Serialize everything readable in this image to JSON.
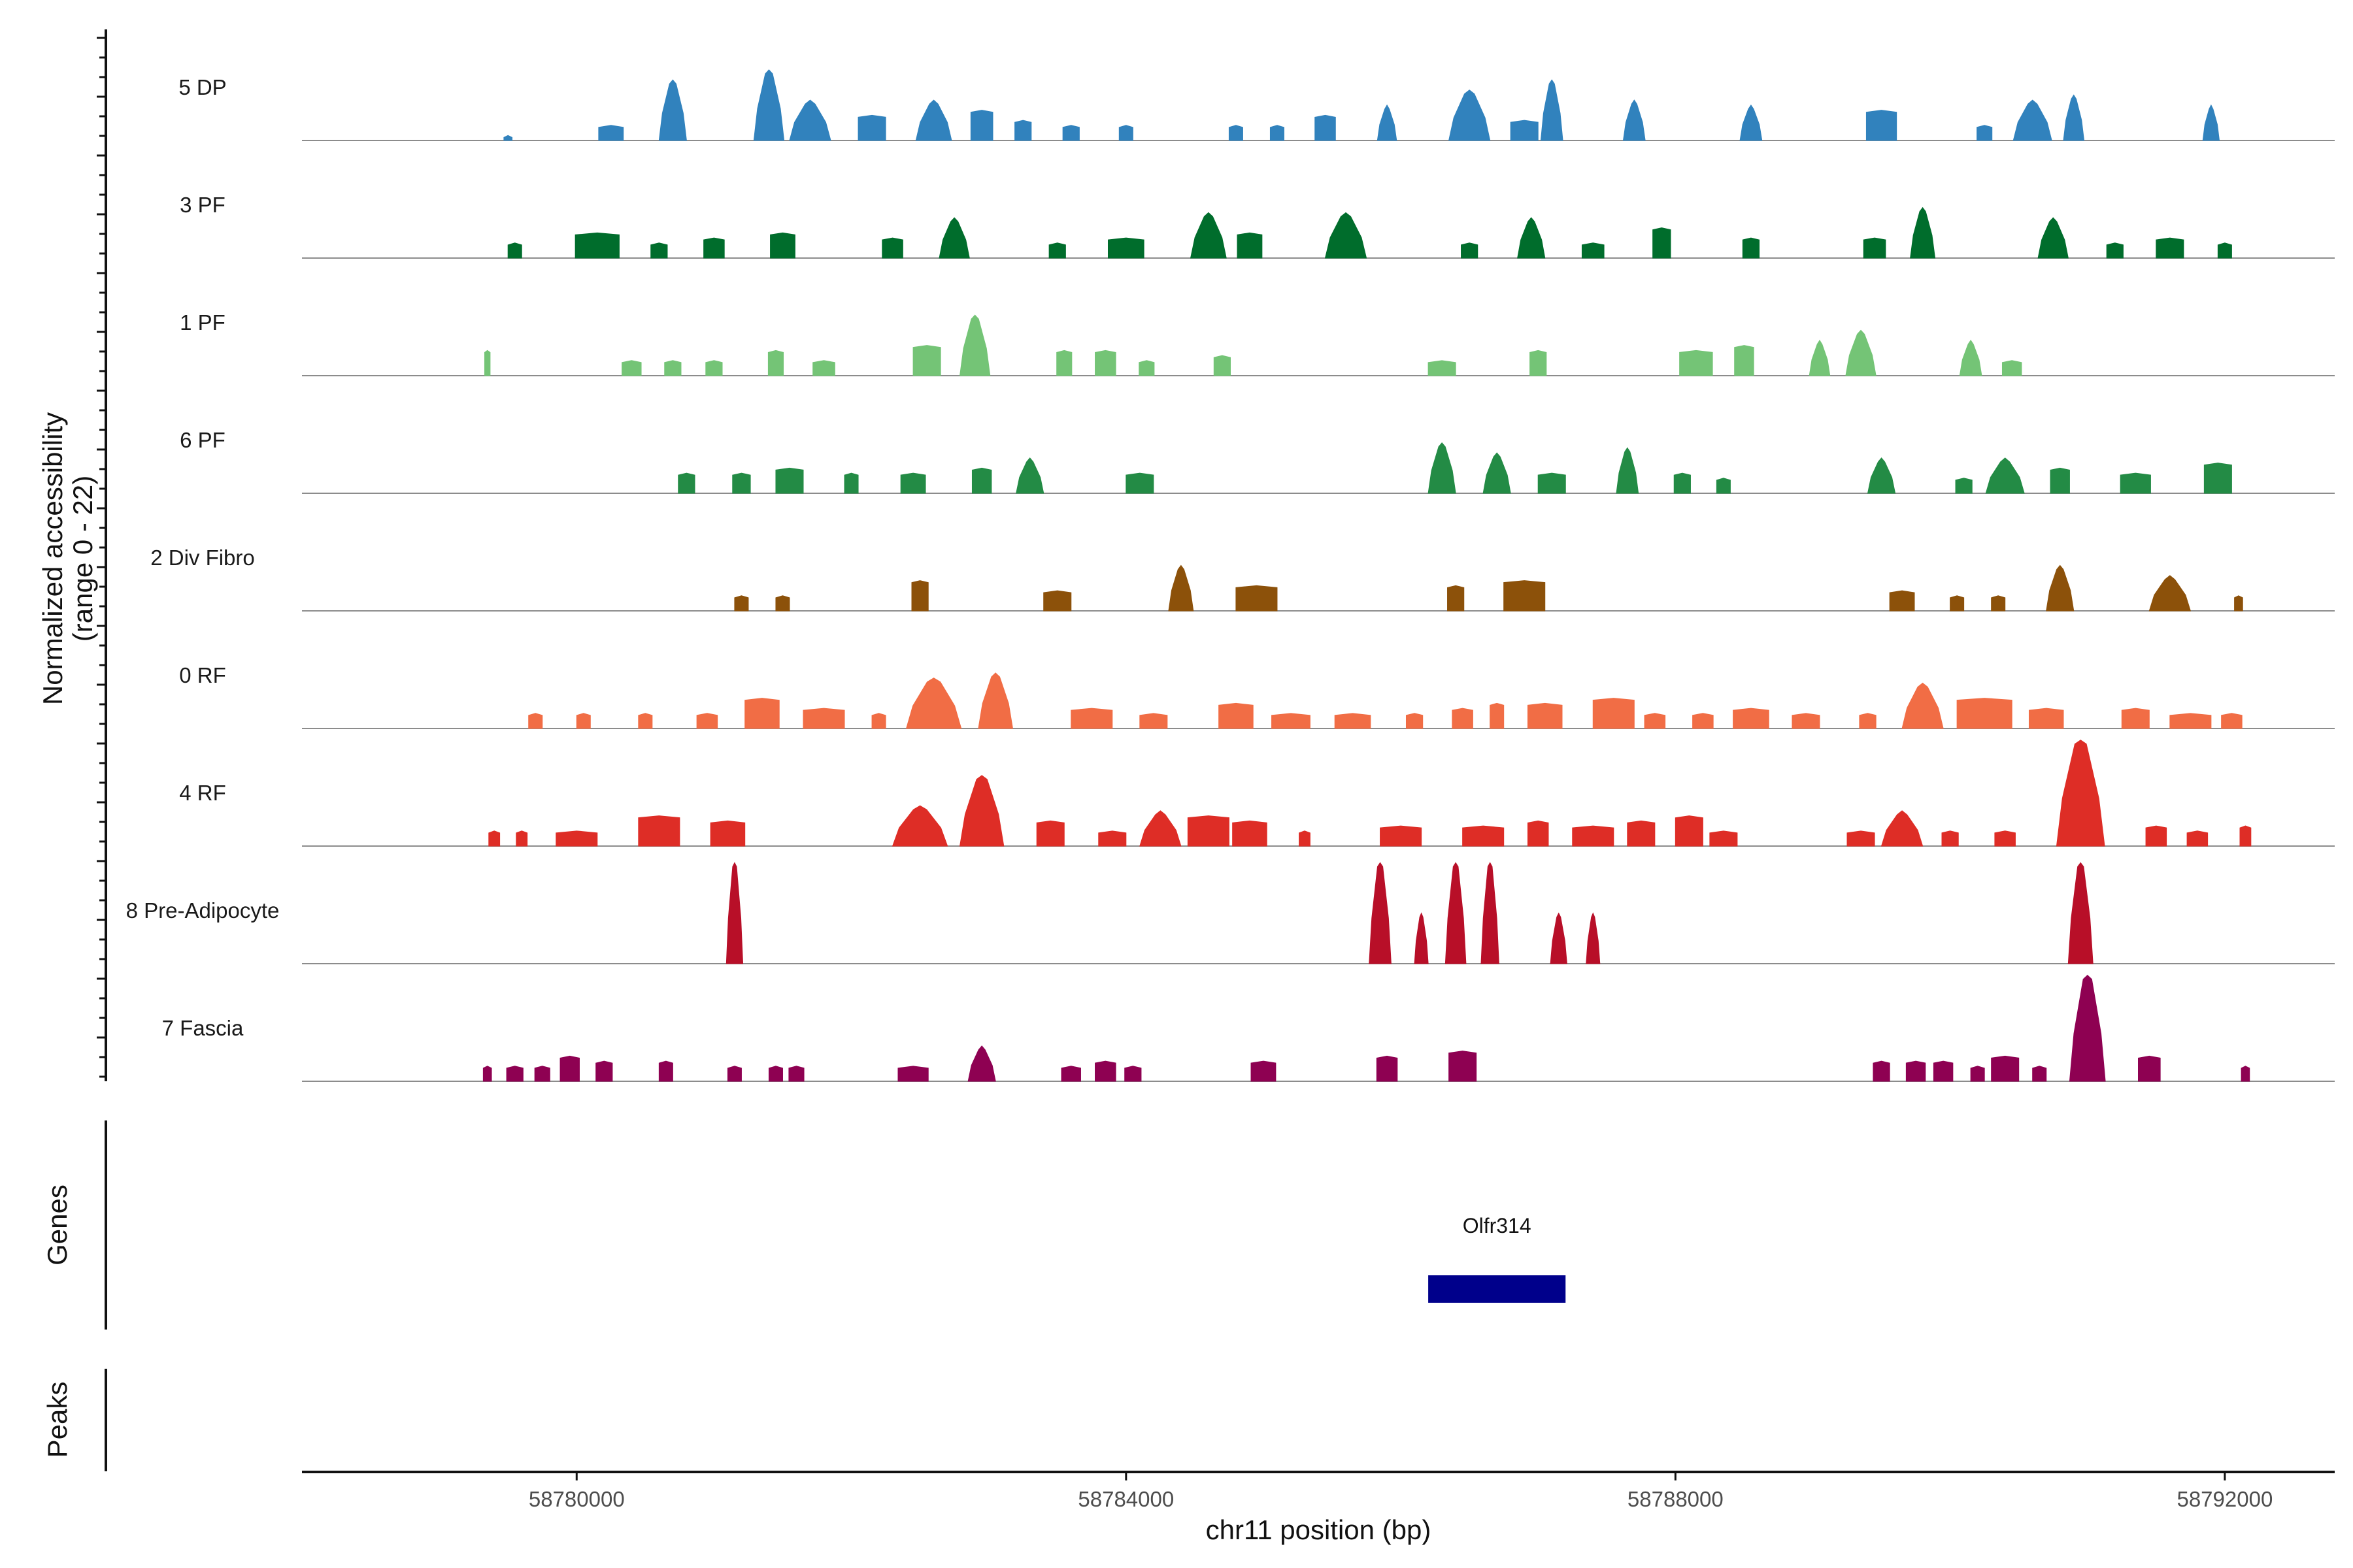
{
  "chart_data": {
    "type": "area",
    "title": "",
    "xlabel": "chr11 position (bp)",
    "ylabel": "Normalized accessibility\n(range 0 - 22)",
    "ylim": [
      0,
      22
    ],
    "xlim": [
      58778000,
      58792800
    ],
    "x_ticks": [
      58780000,
      58784000,
      58788000,
      58792000
    ],
    "x_tick_labels": [
      "58780000",
      "58784000",
      "58788000",
      "58792000"
    ],
    "genes_track_label": "Genes",
    "peaks_track_label": "Peaks",
    "genes": [
      {
        "name": "Olfr314",
        "start": 58786200,
        "end": 58787200,
        "color": "#00008B"
      }
    ],
    "series": [
      {
        "name": "5 DP",
        "color": "#3182BD",
        "peaks": [
          [
            58779500,
            60,
            1
          ],
          [
            58780250,
            180,
            3
          ],
          [
            58780700,
            200,
            12
          ],
          [
            58781400,
            220,
            14
          ],
          [
            58781700,
            300,
            8
          ],
          [
            58782150,
            200,
            5
          ],
          [
            58782600,
            260,
            8
          ],
          [
            58782950,
            160,
            6
          ],
          [
            58783250,
            120,
            4
          ],
          [
            58783600,
            120,
            3
          ],
          [
            58784000,
            100,
            3
          ],
          [
            58784800,
            100,
            3
          ],
          [
            58785100,
            100,
            3
          ],
          [
            58785450,
            150,
            5
          ],
          [
            58785900,
            140,
            7
          ],
          [
            58786500,
            300,
            10
          ],
          [
            58786900,
            200,
            4
          ],
          [
            58787100,
            160,
            12
          ],
          [
            58787700,
            160,
            8
          ],
          [
            58788550,
            160,
            7
          ],
          [
            58789500,
            220,
            6
          ],
          [
            58790250,
            110,
            3
          ],
          [
            58790600,
            280,
            8
          ],
          [
            58790900,
            150,
            9
          ],
          [
            58791900,
            120,
            7
          ]
        ]
      },
      {
        "name": "3 PF",
        "color": "#006D2C",
        "peaks": [
          [
            58779550,
            100,
            3
          ],
          [
            58780150,
            320,
            5
          ],
          [
            58780600,
            120,
            3
          ],
          [
            58781000,
            150,
            4
          ],
          [
            58781500,
            180,
            5
          ],
          [
            58782300,
            150,
            4
          ],
          [
            58782750,
            220,
            8
          ],
          [
            58783500,
            120,
            3
          ],
          [
            58784000,
            260,
            4
          ],
          [
            58784600,
            260,
            9
          ],
          [
            58784900,
            180,
            5
          ],
          [
            58785600,
            300,
            9
          ],
          [
            58786500,
            120,
            3
          ],
          [
            58786950,
            200,
            8
          ],
          [
            58787400,
            160,
            3
          ],
          [
            58787900,
            130,
            6
          ],
          [
            58788550,
            120,
            4
          ],
          [
            58789450,
            160,
            4
          ],
          [
            58789800,
            180,
            10
          ],
          [
            58790750,
            220,
            8
          ],
          [
            58791200,
            120,
            3
          ],
          [
            58791600,
            200,
            4
          ],
          [
            58792000,
            100,
            3
          ]
        ]
      },
      {
        "name": "1 PF",
        "color": "#74C476",
        "peaks": [
          [
            58779350,
            40,
            5
          ],
          [
            58780400,
            140,
            3
          ],
          [
            58780700,
            120,
            3
          ],
          [
            58781000,
            120,
            3
          ],
          [
            58781450,
            110,
            5
          ],
          [
            58781800,
            160,
            3
          ],
          [
            58782550,
            200,
            6
          ],
          [
            58782900,
            220,
            12
          ],
          [
            58783550,
            110,
            5
          ],
          [
            58783850,
            150,
            5
          ],
          [
            58784150,
            110,
            3
          ],
          [
            58784700,
            120,
            4
          ],
          [
            58786300,
            200,
            3
          ],
          [
            58787000,
            120,
            5
          ],
          [
            58788150,
            240,
            5
          ],
          [
            58788500,
            140,
            6
          ],
          [
            58789050,
            150,
            7
          ],
          [
            58789350,
            220,
            9
          ],
          [
            58790150,
            160,
            7
          ],
          [
            58790450,
            140,
            3
          ]
        ]
      },
      {
        "name": "6 PF",
        "color": "#238B45",
        "peaks": [
          [
            58780800,
            120,
            4
          ],
          [
            58781200,
            130,
            4
          ],
          [
            58781550,
            200,
            5
          ],
          [
            58782000,
            100,
            4
          ],
          [
            58782450,
            180,
            4
          ],
          [
            58782950,
            140,
            5
          ],
          [
            58783300,
            200,
            7
          ],
          [
            58784100,
            200,
            4
          ],
          [
            58786300,
            200,
            10
          ],
          [
            58786700,
            200,
            8
          ],
          [
            58787100,
            200,
            4
          ],
          [
            58787650,
            160,
            9
          ],
          [
            58788050,
            120,
            4
          ],
          [
            58788350,
            100,
            3
          ],
          [
            58789500,
            200,
            7
          ],
          [
            58790100,
            120,
            3
          ],
          [
            58790400,
            280,
            7
          ],
          [
            58790800,
            140,
            5
          ],
          [
            58791350,
            220,
            4
          ],
          [
            58791950,
            200,
            6
          ]
        ]
      },
      {
        "name": "2 Div Fibro",
        "color": "#8C510A",
        "peaks": [
          [
            58781200,
            100,
            3
          ],
          [
            58781500,
            100,
            3
          ],
          [
            58782500,
            120,
            6
          ],
          [
            58783500,
            200,
            4
          ],
          [
            58784400,
            180,
            9
          ],
          [
            58784950,
            300,
            5
          ],
          [
            58786400,
            120,
            5
          ],
          [
            58786900,
            300,
            6
          ],
          [
            58789650,
            180,
            4
          ],
          [
            58790050,
            100,
            3
          ],
          [
            58790350,
            100,
            3
          ],
          [
            58790800,
            200,
            9
          ],
          [
            58791600,
            300,
            7
          ],
          [
            58792100,
            60,
            3
          ]
        ]
      },
      {
        "name": "0 RF",
        "color": "#F16D45",
        "peaks": [
          [
            58779700,
            100,
            3
          ],
          [
            58780050,
            100,
            3
          ],
          [
            58780500,
            100,
            3
          ],
          [
            58780950,
            150,
            3
          ],
          [
            58781350,
            250,
            6
          ],
          [
            58781800,
            300,
            4
          ],
          [
            58782200,
            100,
            3
          ],
          [
            58782600,
            400,
            10
          ],
          [
            58783050,
            250,
            11
          ],
          [
            58783750,
            300,
            4
          ],
          [
            58784200,
            200,
            3
          ],
          [
            58784800,
            250,
            5
          ],
          [
            58785200,
            280,
            3
          ],
          [
            58785650,
            260,
            3
          ],
          [
            58786100,
            120,
            3
          ],
          [
            58786450,
            150,
            4
          ],
          [
            58786700,
            100,
            5
          ],
          [
            58787050,
            250,
            5
          ],
          [
            58787550,
            300,
            6
          ],
          [
            58787850,
            150,
            3
          ],
          [
            58788200,
            150,
            3
          ],
          [
            58788550,
            260,
            4
          ],
          [
            58788950,
            200,
            3
          ],
          [
            58789400,
            120,
            3
          ],
          [
            58789800,
            300,
            9
          ],
          [
            58790250,
            400,
            6
          ],
          [
            58790700,
            250,
            4
          ],
          [
            58791350,
            200,
            4
          ],
          [
            58791750,
            300,
            3
          ],
          [
            58792050,
            150,
            3
          ]
        ]
      },
      {
        "name": "4 RF",
        "color": "#DE2D26",
        "peaks": [
          [
            58779400,
            80,
            3
          ],
          [
            58779600,
            80,
            3
          ],
          [
            58780000,
            300,
            3
          ],
          [
            58780600,
            300,
            6
          ],
          [
            58781100,
            250,
            5
          ],
          [
            58782500,
            400,
            8
          ],
          [
            58782950,
            320,
            14
          ],
          [
            58783450,
            200,
            5
          ],
          [
            58783900,
            200,
            3
          ],
          [
            58784250,
            300,
            7
          ],
          [
            58784600,
            300,
            6
          ],
          [
            58784900,
            250,
            5
          ],
          [
            58785300,
            80,
            3
          ],
          [
            58786000,
            300,
            4
          ],
          [
            58786600,
            300,
            4
          ],
          [
            58787000,
            150,
            5
          ],
          [
            58787400,
            300,
            4
          ],
          [
            58787750,
            200,
            5
          ],
          [
            58788100,
            200,
            6
          ],
          [
            58788350,
            200,
            3
          ],
          [
            58789350,
            200,
            3
          ],
          [
            58789650,
            300,
            7
          ],
          [
            58790000,
            120,
            3
          ],
          [
            58790400,
            150,
            3
          ],
          [
            58790950,
            350,
            21
          ],
          [
            58791500,
            150,
            4
          ],
          [
            58791800,
            150,
            3
          ],
          [
            58792150,
            80,
            4
          ]
        ]
      },
      {
        "name": "8 Pre-Adipocyte",
        "color": "#B80F28",
        "peaks": [
          [
            58781150,
            120,
            20
          ],
          [
            58785850,
            160,
            20
          ],
          [
            58786150,
            100,
            10
          ],
          [
            58786400,
            150,
            20
          ],
          [
            58786650,
            130,
            20
          ],
          [
            58787150,
            120,
            10
          ],
          [
            58787400,
            100,
            10
          ],
          [
            58790950,
            180,
            20
          ]
        ]
      },
      {
        "name": "7 Fascia",
        "color": "#8E0152",
        "peaks": [
          [
            58779350,
            60,
            3
          ],
          [
            58779550,
            120,
            3
          ],
          [
            58779750,
            110,
            3
          ],
          [
            58779950,
            140,
            5
          ],
          [
            58780200,
            120,
            4
          ],
          [
            58780650,
            100,
            4
          ],
          [
            58781150,
            100,
            3
          ],
          [
            58781450,
            100,
            3
          ],
          [
            58781600,
            110,
            3
          ],
          [
            58782450,
            220,
            3
          ],
          [
            58782950,
            200,
            7
          ],
          [
            58783600,
            140,
            3
          ],
          [
            58783850,
            150,
            4
          ],
          [
            58784050,
            120,
            3
          ],
          [
            58785000,
            180,
            4
          ],
          [
            58785900,
            150,
            5
          ],
          [
            58786450,
            200,
            6
          ],
          [
            58789500,
            120,
            4
          ],
          [
            58789750,
            140,
            4
          ],
          [
            58789950,
            140,
            4
          ],
          [
            58790200,
            100,
            3
          ],
          [
            58790400,
            200,
            5
          ],
          [
            58790650,
            100,
            3
          ],
          [
            58791000,
            260,
            21
          ],
          [
            58791450,
            160,
            5
          ],
          [
            58792150,
            60,
            3
          ]
        ]
      }
    ]
  }
}
